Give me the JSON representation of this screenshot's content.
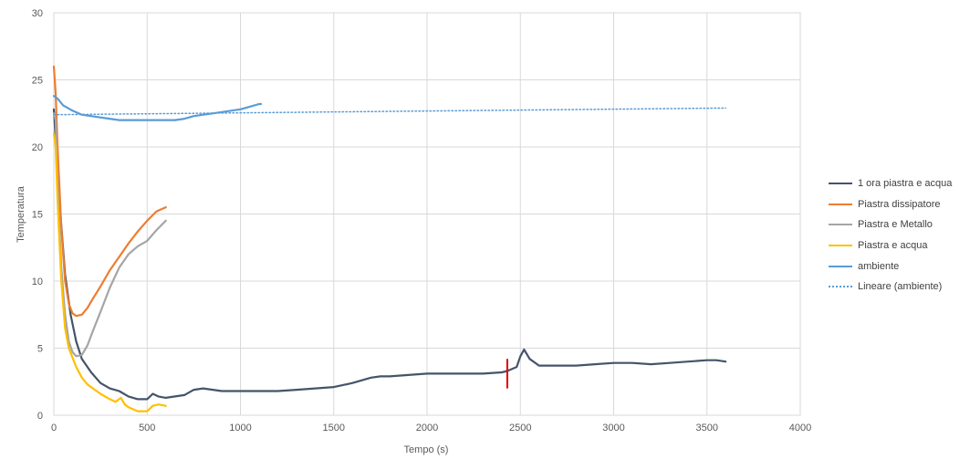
{
  "chart_data": {
    "type": "line",
    "title": "",
    "xlabel": "Tempo (s)",
    "ylabel": "Temperatura",
    "xlim": [
      0,
      4000
    ],
    "ylim": [
      0,
      30
    ],
    "xticks": [
      "0",
      "500",
      "1000",
      "1500",
      "2000",
      "2500",
      "3000",
      "3500",
      "4000"
    ],
    "yticks": [
      "0",
      "5",
      "10",
      "15",
      "20",
      "25",
      "30"
    ],
    "grid": true,
    "legend_position": "right",
    "series": [
      {
        "name": "1 ora piastra e acqua",
        "color": "#44546A",
        "style": "solid",
        "x": [
          0,
          30,
          60,
          90,
          120,
          150,
          200,
          250,
          300,
          350,
          400,
          450,
          500,
          530,
          560,
          600,
          650,
          700,
          750,
          800,
          900,
          1000,
          1100,
          1200,
          1300,
          1400,
          1500,
          1600,
          1700,
          1750,
          1800,
          1900,
          2000,
          2100,
          2200,
          2300,
          2400,
          2430,
          2480,
          2500,
          2520,
          2550,
          2600,
          2700,
          2800,
          2900,
          3000,
          3100,
          3200,
          3300,
          3400,
          3500,
          3550,
          3600
        ],
        "y": [
          22.8,
          16,
          10.5,
          7.5,
          5.5,
          4.2,
          3.2,
          2.4,
          2.0,
          1.8,
          1.4,
          1.2,
          1.2,
          1.6,
          1.4,
          1.3,
          1.4,
          1.5,
          1.9,
          2.0,
          1.8,
          1.8,
          1.8,
          1.8,
          1.9,
          2.0,
          2.1,
          2.4,
          2.8,
          2.9,
          2.9,
          3.0,
          3.1,
          3.1,
          3.1,
          3.1,
          3.2,
          3.3,
          3.6,
          4.4,
          4.9,
          4.2,
          3.7,
          3.7,
          3.7,
          3.8,
          3.9,
          3.9,
          3.8,
          3.9,
          4.0,
          4.1,
          4.1,
          4.0
        ]
      },
      {
        "name": "Piastra dissipatore",
        "color": "#ED7D31",
        "style": "solid",
        "x": [
          0,
          10,
          20,
          40,
          60,
          80,
          100,
          120,
          150,
          180,
          210,
          250,
          300,
          350,
          400,
          450,
          500,
          550,
          600
        ],
        "y": [
          26,
          24,
          20,
          14,
          10,
          8.3,
          7.6,
          7.4,
          7.5,
          8.0,
          8.7,
          9.6,
          10.8,
          11.8,
          12.8,
          13.7,
          14.5,
          15.2,
          15.5
        ]
      },
      {
        "name": "Piastra e Metallo",
        "color": "#A5A5A5",
        "style": "solid",
        "x": [
          0,
          10,
          20,
          40,
          60,
          80,
          100,
          120,
          150,
          180,
          210,
          250,
          300,
          350,
          400,
          450,
          500,
          550,
          600
        ],
        "y": [
          22.5,
          22,
          17,
          11,
          7.5,
          5.5,
          4.7,
          4.4,
          4.5,
          5.2,
          6.3,
          7.7,
          9.5,
          11.0,
          12.0,
          12.6,
          13.0,
          13.8,
          14.5
        ]
      },
      {
        "name": "Piastra e acqua",
        "color": "#FFC000",
        "style": "solid",
        "x": [
          0,
          10,
          20,
          40,
          60,
          80,
          100,
          120,
          150,
          180,
          210,
          250,
          300,
          330,
          360,
          380,
          400,
          450,
          500,
          530,
          560,
          600
        ],
        "y": [
          21,
          20,
          16,
          10,
          6.5,
          5,
          4.3,
          3.6,
          2.8,
          2.3,
          2.0,
          1.6,
          1.2,
          1.0,
          1.3,
          0.8,
          0.6,
          0.3,
          0.3,
          0.7,
          0.8,
          0.7
        ]
      },
      {
        "name": "ambiente",
        "color": "#5B9BD5",
        "style": "solid",
        "x": [
          0,
          20,
          50,
          100,
          150,
          200,
          250,
          300,
          350,
          400,
          450,
          500,
          550,
          600,
          650,
          700,
          750,
          800,
          850,
          900,
          950,
          1000,
          1050,
          1100,
          1110
        ],
        "y": [
          23.8,
          23.6,
          23.1,
          22.7,
          22.4,
          22.3,
          22.2,
          22.1,
          22.0,
          22.0,
          22.0,
          22.0,
          22.0,
          22.0,
          22.0,
          22.1,
          22.3,
          22.4,
          22.5,
          22.6,
          22.7,
          22.8,
          23.0,
          23.2,
          23.2
        ]
      },
      {
        "name": "Lineare (ambiente)",
        "color": "#5B9BD5",
        "style": "dotted",
        "x": [
          0,
          3600
        ],
        "y": [
          22.4,
          22.9
        ]
      }
    ],
    "annotations": [
      {
        "type": "vertical-marker",
        "x": 2430,
        "y_from": 2.0,
        "y_to": 4.2,
        "color": "#E00000"
      }
    ]
  }
}
